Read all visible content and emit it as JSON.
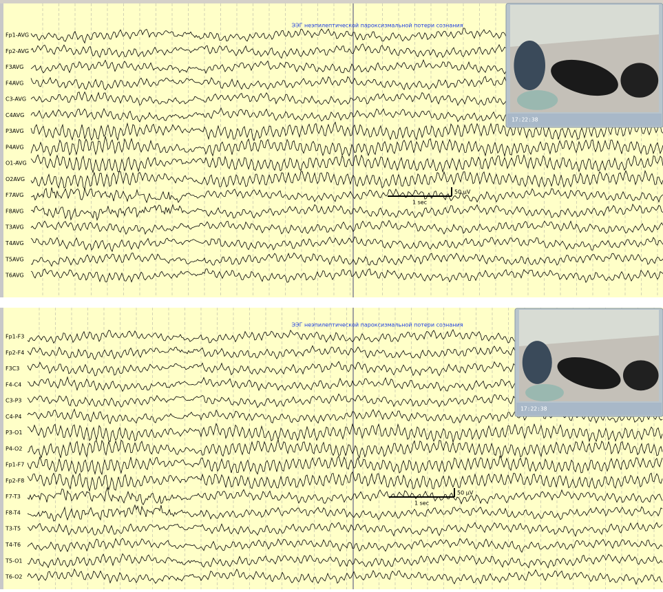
{
  "panels": [
    {
      "title": "ЭЭГ неэпилептической пароксизмальной потери сознания",
      "channels": [
        "Fp1-AVG",
        "Fp2-AVG",
        "F3AVG",
        "F4AVG",
        "C3-AVG",
        "C4AVG",
        "P3AVG",
        "P4AVG",
        "O1-AVG",
        "O2AVG",
        "F7AVG",
        "F8AVG",
        "T3AVG",
        "T4AVG",
        "T5AVG",
        "T6AVG"
      ],
      "timestamp": "17:22:38",
      "amplitude_label": "50 µV",
      "time_label": "1 sec"
    },
    {
      "title": "ЭЭГ неэпилептической пароксизмальной потери сознания",
      "channels": [
        "Fp1-F3",
        "Fp2-F4",
        "F3C3",
        "F4-C4",
        "C3-P3",
        "C4-P4",
        "P3-O1",
        "P4-O2",
        "Fp1-F7",
        "Fp2-F8",
        "F7-T3",
        "F8-T4",
        "T3-T5",
        "T4-T6",
        "T5-O1",
        "T6-O2"
      ],
      "timestamp": "17:22:38",
      "amplitude_label": "50 µV",
      "time_label": "1 sec"
    }
  ]
}
